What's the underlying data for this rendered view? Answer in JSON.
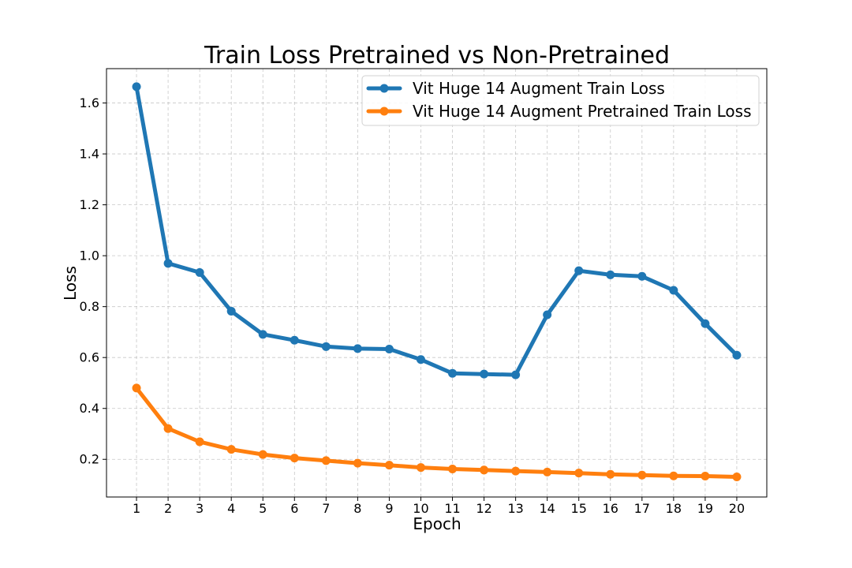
{
  "chart_data": {
    "type": "line",
    "title": "Train Loss Pretrained vs Non-Pretrained",
    "xlabel": "Epoch",
    "ylabel": "Loss",
    "x": [
      1,
      2,
      3,
      4,
      5,
      6,
      7,
      8,
      9,
      10,
      11,
      12,
      13,
      14,
      15,
      16,
      17,
      18,
      19,
      20
    ],
    "x_ticks": [
      "1",
      "2",
      "3",
      "4",
      "5",
      "6",
      "7",
      "8",
      "9",
      "10",
      "11",
      "12",
      "13",
      "14",
      "15",
      "16",
      "17",
      "18",
      "19",
      "20"
    ],
    "y_ticks": [
      "0.2",
      "0.4",
      "0.6",
      "0.8",
      "1.0",
      "1.2",
      "1.4",
      "1.6"
    ],
    "xlim": [
      0.05,
      20.95
    ],
    "ylim": [
      0.052,
      1.735
    ],
    "grid": true,
    "legend_position": "top-right",
    "series": [
      {
        "name": "Vit Huge 14 Augment Train Loss",
        "color": "#1f77b4",
        "values": [
          1.664,
          0.97,
          0.934,
          0.782,
          0.691,
          0.668,
          0.643,
          0.635,
          0.633,
          0.592,
          0.538,
          0.535,
          0.532,
          0.768,
          0.941,
          0.925,
          0.919,
          0.864,
          0.733,
          0.609
        ]
      },
      {
        "name": "Vit Huge 14 Augment Pretrained Train Loss",
        "color": "#ff7f0e",
        "values": [
          0.48,
          0.321,
          0.269,
          0.239,
          0.219,
          0.205,
          0.195,
          0.185,
          0.177,
          0.168,
          0.162,
          0.158,
          0.154,
          0.15,
          0.146,
          0.141,
          0.138,
          0.135,
          0.134,
          0.131
        ]
      }
    ]
  }
}
